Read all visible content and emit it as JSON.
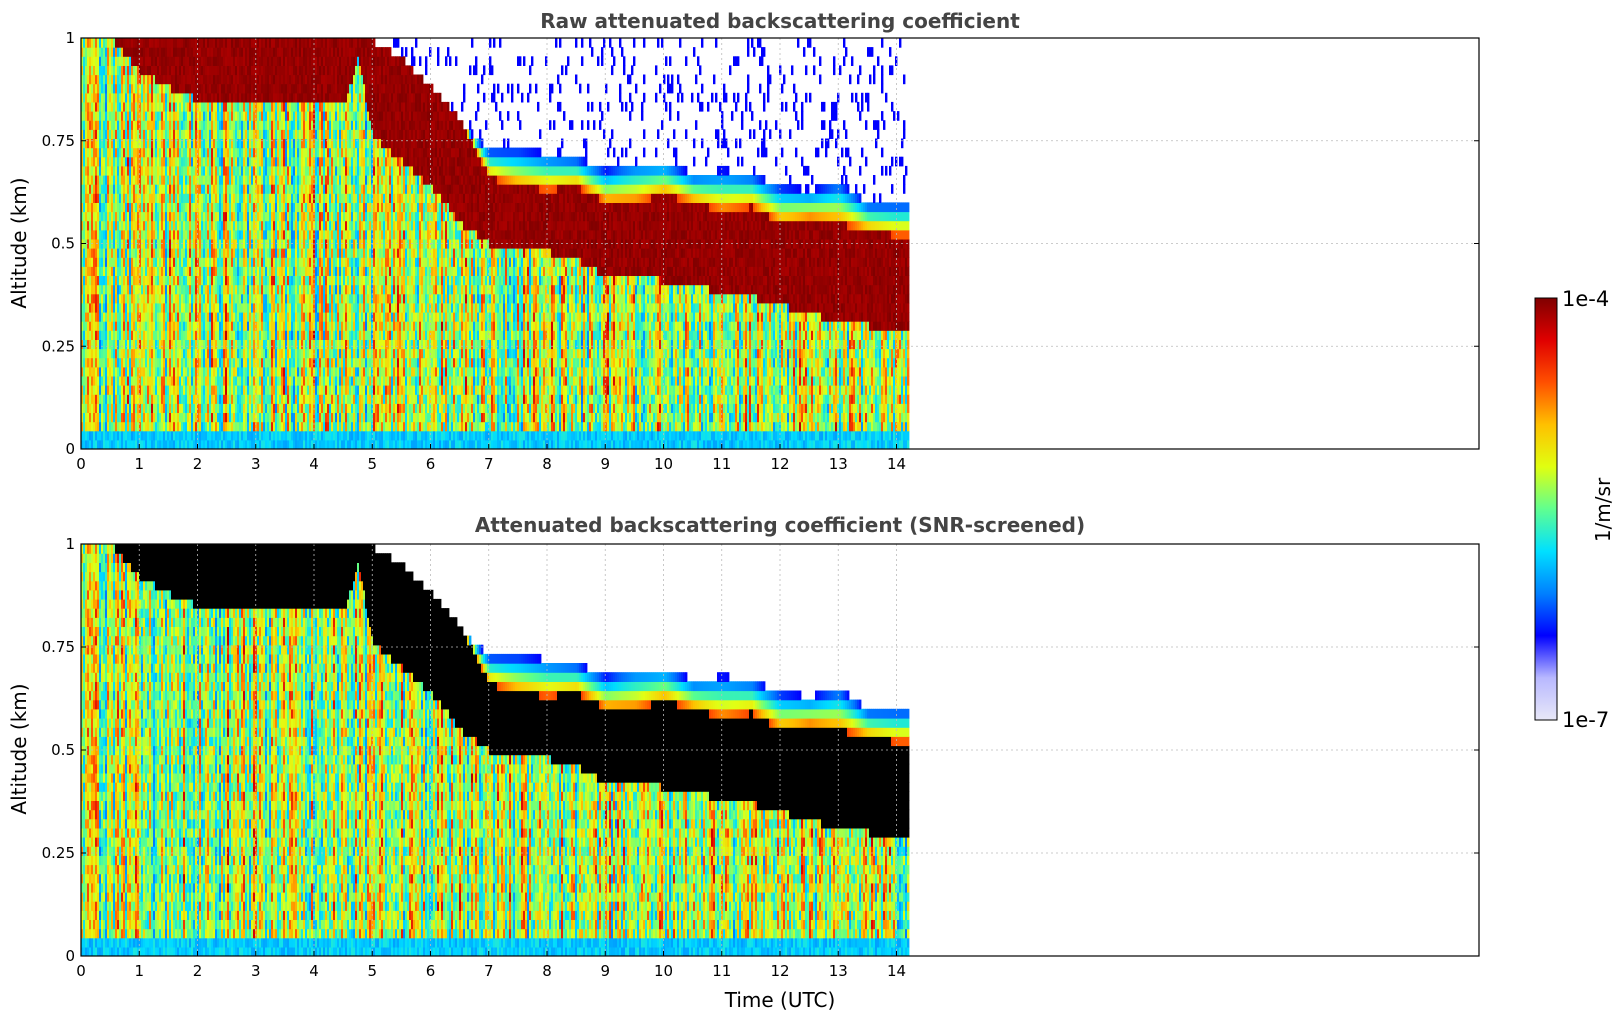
{
  "chart_data": [
    {
      "type": "heatmap",
      "title": "Raw attenuated backscattering coefficient",
      "xlabel": "",
      "ylabel": "Altitude (km)",
      "xlim": [
        0,
        24
      ],
      "ylim": [
        0,
        1
      ],
      "x_ticks": [
        "0",
        "1",
        "2",
        "3",
        "4",
        "5",
        "6",
        "7",
        "8",
        "9",
        "10",
        "11",
        "12",
        "13",
        "14"
      ],
      "y_ticks": [
        "0",
        "0.25",
        "0.5",
        "0.75",
        "1"
      ],
      "data_end_time": 14.2,
      "grid": true,
      "screened": false,
      "cloud_layer": {
        "time": [
          0.0,
          0.5,
          1.0,
          1.5,
          2.0,
          2.5,
          3.0,
          3.5,
          4.0,
          4.5,
          4.75,
          5.0,
          5.5,
          6.0,
          6.5,
          7.0,
          7.5,
          8.0,
          8.5,
          9.0,
          9.5,
          10.0,
          10.5,
          11.0,
          11.5,
          12.0,
          12.5,
          13.0,
          13.5,
          14.0,
          14.2
        ],
        "base_km": [
          1.0,
          1.0,
          0.92,
          0.88,
          0.85,
          0.84,
          0.84,
          0.84,
          0.84,
          0.84,
          0.95,
          0.76,
          0.7,
          0.64,
          0.55,
          0.5,
          0.5,
          0.48,
          0.46,
          0.42,
          0.42,
          0.41,
          0.4,
          0.38,
          0.37,
          0.35,
          0.33,
          0.31,
          0.3,
          0.3,
          0.3
        ],
        "top_km": [
          1.0,
          1.0,
          1.0,
          1.0,
          1.0,
          1.0,
          1.0,
          1.0,
          1.0,
          1.0,
          1.0,
          0.99,
          0.95,
          0.88,
          0.8,
          0.66,
          0.64,
          0.63,
          0.64,
          0.6,
          0.6,
          0.62,
          0.6,
          0.58,
          0.59,
          0.55,
          0.56,
          0.55,
          0.53,
          0.52,
          0.52
        ],
        "upper_edge_km": [
          1.0,
          1.0,
          1.0,
          1.0,
          1.0,
          1.0,
          1.0,
          1.0,
          1.0,
          1.0,
          1.0,
          0.99,
          0.92,
          0.86,
          0.79,
          0.73,
          0.73,
          0.72,
          0.71,
          0.68,
          0.7,
          0.7,
          0.67,
          0.68,
          0.67,
          0.64,
          0.63,
          0.65,
          0.6,
          0.6,
          0.6
        ]
      }
    },
    {
      "type": "heatmap",
      "title": "Attenuated backscattering coefficient (SNR-screened)",
      "xlabel": "Time (UTC)",
      "ylabel": "Altitude (km)",
      "xlim": [
        0,
        24
      ],
      "ylim": [
        0,
        1
      ],
      "x_ticks": [
        "0",
        "1",
        "2",
        "3",
        "4",
        "5",
        "6",
        "7",
        "8",
        "9",
        "10",
        "11",
        "12",
        "13",
        "14"
      ],
      "y_ticks": [
        "0",
        "0.25",
        "0.5",
        "0.75",
        "1"
      ],
      "data_end_time": 14.2,
      "grid": true,
      "screened": true,
      "cloud_layer": {
        "time": [
          0.0,
          0.5,
          1.0,
          1.5,
          2.0,
          2.5,
          3.0,
          3.5,
          4.0,
          4.5,
          4.75,
          5.0,
          5.5,
          6.0,
          6.5,
          7.0,
          7.5,
          8.0,
          8.5,
          9.0,
          9.5,
          10.0,
          10.5,
          11.0,
          11.5,
          12.0,
          12.5,
          13.0,
          13.5,
          14.0,
          14.2
        ],
        "base_km": [
          1.0,
          1.0,
          0.92,
          0.88,
          0.85,
          0.84,
          0.84,
          0.84,
          0.84,
          0.84,
          0.95,
          0.76,
          0.7,
          0.64,
          0.55,
          0.5,
          0.5,
          0.48,
          0.46,
          0.42,
          0.42,
          0.41,
          0.4,
          0.38,
          0.37,
          0.35,
          0.33,
          0.31,
          0.3,
          0.3,
          0.3
        ],
        "top_km": [
          1.0,
          1.0,
          1.0,
          1.0,
          1.0,
          1.0,
          1.0,
          1.0,
          1.0,
          1.0,
          1.0,
          0.99,
          0.95,
          0.88,
          0.8,
          0.66,
          0.64,
          0.63,
          0.64,
          0.6,
          0.6,
          0.62,
          0.6,
          0.58,
          0.59,
          0.55,
          0.56,
          0.55,
          0.53,
          0.52,
          0.52
        ],
        "upper_edge_km": [
          1.0,
          1.0,
          1.0,
          1.0,
          1.0,
          1.0,
          1.0,
          1.0,
          1.0,
          1.0,
          1.0,
          0.99,
          0.92,
          0.86,
          0.79,
          0.73,
          0.73,
          0.72,
          0.71,
          0.68,
          0.7,
          0.7,
          0.67,
          0.68,
          0.67,
          0.64,
          0.63,
          0.65,
          0.6,
          0.6,
          0.6
        ]
      }
    }
  ],
  "colorbar": {
    "label": "1/m/sr",
    "max_label": "1e-4",
    "min_label": "1e-7",
    "colormap": "jet",
    "colors": [
      "#e8e8f8",
      "#b8b8ff",
      "#0000ff",
      "#0080ff",
      "#00e0ff",
      "#60ff90",
      "#e0ff10",
      "#ffc000",
      "#ff5000",
      "#e00000",
      "#800000"
    ]
  }
}
